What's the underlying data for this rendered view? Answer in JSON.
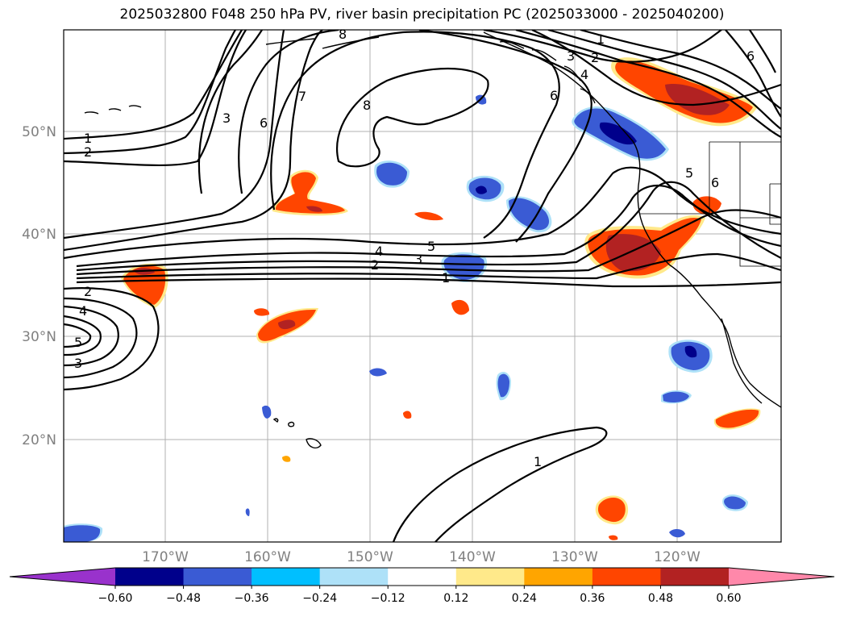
{
  "title": "2025032800 F048 250 hPa PV, river basin precipitation PC (2025033000 - 2025040200)",
  "lat_labels": [
    "50°N",
    "40°N",
    "30°N",
    "20°N"
  ],
  "lon_labels": [
    "170°W",
    "160°W",
    "150°W",
    "140°W",
    "130°W",
    "120°W"
  ],
  "colorbar": {
    "ticks": [
      "−0.60",
      "−0.48",
      "−0.36",
      "−0.24",
      "−0.12",
      "0.12",
      "0.24",
      "0.36",
      "0.48",
      "0.60"
    ],
    "colors": [
      "#9932cc",
      "#00008b",
      "#3a5bd4",
      "#00bfff",
      "#aee1f8",
      "#ffffff",
      "#ffe98a",
      "#ffa500",
      "#ff4500",
      "#b22222",
      "#ff88aa"
    ]
  },
  "contour_labels": [
    "1",
    "2",
    "3",
    "4",
    "5",
    "6",
    "7",
    "8"
  ]
}
